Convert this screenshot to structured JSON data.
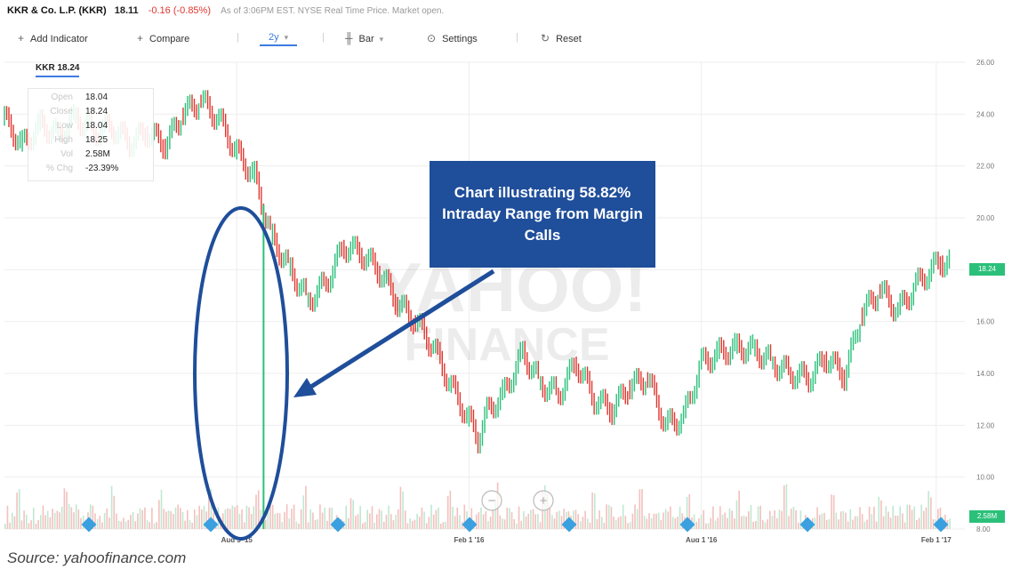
{
  "quote": {
    "name": "KKR & Co. L.P. (KKR)",
    "price": "18.11",
    "change": "-0.16 (-0.85%)",
    "as_of": "As of 3:06PM EST. NYSE Real Time Price. Market open."
  },
  "toolbar": {
    "add_indicator": "Add Indicator",
    "compare": "Compare",
    "range": "2y",
    "chart_type": "Bar",
    "settings": "Settings",
    "reset": "Reset"
  },
  "symbol_label": "KKR 18.24",
  "info_box": [
    {
      "key": "Open",
      "value": "18.04"
    },
    {
      "key": "Close",
      "value": "18.24"
    },
    {
      "key": "Low",
      "value": "18.04"
    },
    {
      "key": "High",
      "value": "18.25"
    },
    {
      "key": "Vol",
      "value": "2.58M"
    },
    {
      "key": "% Chg",
      "value": "-23.39%"
    }
  ],
  "last_price_tag": "18.24",
  "volume_tag": "2.58M",
  "callout_text": "Chart illustrating 58.82% Intraday Range from Margin Calls",
  "watermark": [
    "YAHOO!",
    "FINANCE"
  ],
  "source": "Source: yahoofinance.com",
  "colors": {
    "up": "#2bc07a",
    "down": "#e0362e",
    "callout_bg": "#1f4e9a",
    "ellipse": "#1f4e9a",
    "accent": "#3d7be0",
    "volume_up": "#bfe8d2",
    "volume_down": "#f2c1bd"
  },
  "icons": [
    "plus-icon",
    "bar-chart-icon",
    "gear-icon",
    "reset-icon",
    "zoom-out-icon",
    "zoom-in-icon",
    "event-marker-icon"
  ],
  "chart_data": {
    "type": "line",
    "title": "KKR & Co. L.P. (KKR)",
    "xlabel": "",
    "ylabel": "",
    "x_ticks": [
      "Aug 3 '15",
      "Feb 1 '16",
      "Aug 1 '16",
      "Feb 1 '17"
    ],
    "y_ticks": [
      "26.00",
      "24.00",
      "22.00",
      "20.00",
      "18.00",
      "16.00",
      "14.00",
      "12.00",
      "10.00",
      "8.00"
    ],
    "ylim": [
      8,
      26
    ],
    "grid": true,
    "series": [
      {
        "x": [
          "2015-02-02",
          "2015-02-16",
          "2015-03-02",
          "2015-03-16",
          "2015-03-30",
          "2015-04-13",
          "2015-04-27",
          "2015-05-11",
          "2015-05-25",
          "2015-06-08",
          "2015-06-22",
          "2015-07-06",
          "2015-07-20",
          "2015-08-03",
          "2015-08-17",
          "2015-08-24",
          "2015-08-31",
          "2015-09-14",
          "2015-09-28",
          "2015-10-12",
          "2015-10-26",
          "2015-11-09",
          "2015-11-23",
          "2015-12-07",
          "2015-12-21",
          "2016-01-04",
          "2016-01-18",
          "2016-02-01",
          "2016-02-08",
          "2016-02-15",
          "2016-02-29",
          "2016-03-14",
          "2016-03-28",
          "2016-04-11",
          "2016-04-25",
          "2016-05-09",
          "2016-05-23",
          "2016-06-06",
          "2016-06-20",
          "2016-07-04",
          "2016-07-18",
          "2016-08-01",
          "2016-08-15",
          "2016-08-29",
          "2016-09-12",
          "2016-09-26",
          "2016-10-10",
          "2016-10-24",
          "2016-11-07",
          "2016-11-21",
          "2016-12-05",
          "2016-12-19",
          "2017-01-02",
          "2017-01-16",
          "2017-01-30",
          "2017-02-06",
          "2017-02-13"
        ],
        "values": [
          23.8,
          22.8,
          23.6,
          23.2,
          23.9,
          23.3,
          23.5,
          22.9,
          23.3,
          22.8,
          24.0,
          24.5,
          23.8,
          22.5,
          21.6,
          20.3,
          19.2,
          18.0,
          16.8,
          17.5,
          18.9,
          18.6,
          17.9,
          16.7,
          16.0,
          15.0,
          13.5,
          12.2,
          11.5,
          12.5,
          13.3,
          14.8,
          13.6,
          13.2,
          14.4,
          13.0,
          12.6,
          13.5,
          13.8,
          12.0,
          12.3,
          14.4,
          14.8,
          15.0,
          14.9,
          14.4,
          14.0,
          13.8,
          14.6,
          13.9,
          16.3,
          17.2,
          16.4,
          17.4,
          18.1,
          18.3,
          18.24
        ]
      }
    ],
    "spike": {
      "x": "2015-08-24",
      "high": 20.5,
      "low": 8.0
    },
    "volume_last": "2.58M"
  }
}
